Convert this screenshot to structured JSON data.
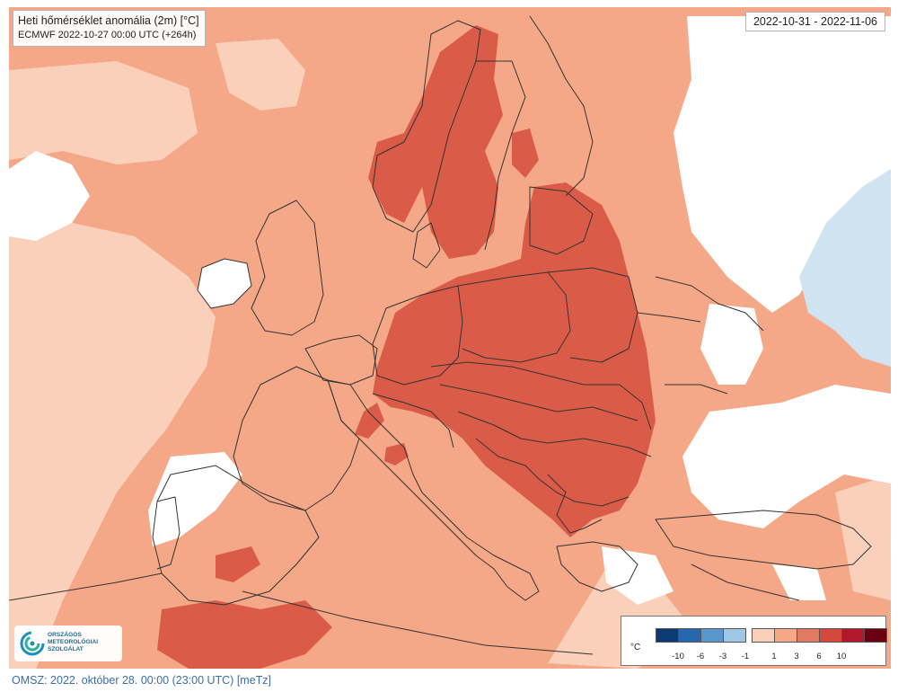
{
  "map": {
    "title": "Heti hőmérséklet anomália (2m) [°C]",
    "subtitle": "ECMWF 2022-10-27 00:00 UTC (+264h)",
    "period": "2022-10-31 - 2022-11-06",
    "colors": {
      "sea_and_bg": "#f4a888",
      "anomaly_0_1": "#fbd0ba",
      "anomaly_1_3": "#f4a888",
      "anomaly_3_6": "#db5b49",
      "anomaly_neg_1": "#cfe3f0",
      "borders": "#333333"
    }
  },
  "legend": {
    "unit": "°C",
    "negative": [
      {
        "color": "#0d3a75"
      },
      {
        "color": "#2767ad"
      },
      {
        "color": "#5b97cf"
      },
      {
        "color": "#9ec8e6"
      }
    ],
    "positive": [
      {
        "color": "#fbd0ba"
      },
      {
        "color": "#f4a888"
      },
      {
        "color": "#e17a63"
      },
      {
        "color": "#d4493b"
      },
      {
        "color": "#b1182b"
      },
      {
        "color": "#6b0012"
      }
    ],
    "ticks": [
      "-10",
      "-6",
      "-3",
      "-1",
      "1",
      "3",
      "6",
      "10"
    ]
  },
  "logo": {
    "line1": "ORSZÁGOS",
    "line2": "METEOROLÓGIAI",
    "line3": "SZOLGÁLAT",
    "icon": "omsz-swirl-logo"
  },
  "footer": "OMSZ: 2022. október 28. 00:00 (23:00  UTC)  [meTz]"
}
